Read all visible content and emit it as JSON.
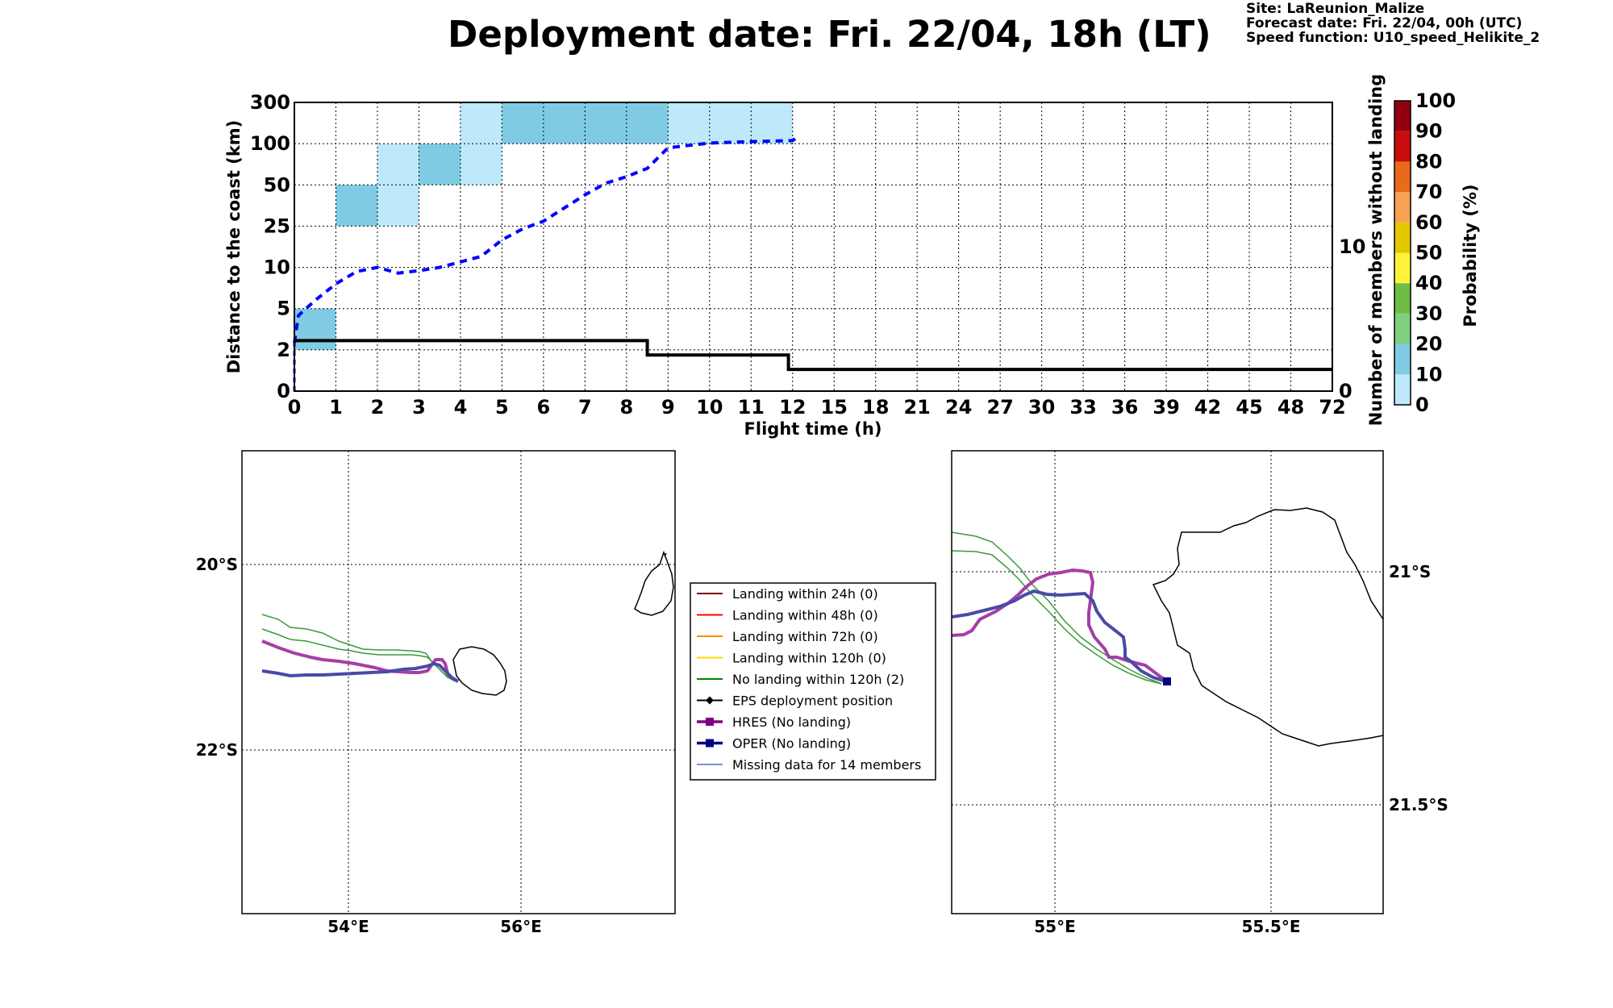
{
  "title": "Deployment date: Fri. 22/04, 18h (LT)",
  "info": {
    "site": "Site: LaReunion_Malize",
    "forecast": "Forecast date: Fri. 22/04, 00h (UTC)",
    "speed": "Speed function: U10_speed_Helikite_2"
  },
  "chart_data": [
    {
      "type": "heatmap",
      "xlabel": "Flight time (h)",
      "ylabel": "Distance to the coast (km)",
      "y2label": "Number of members without landing",
      "x_ticks": [
        "0",
        "1",
        "2",
        "3",
        "4",
        "5",
        "6",
        "7",
        "8",
        "9",
        "10",
        "11",
        "12",
        "15",
        "18",
        "21",
        "24",
        "27",
        "30",
        "33",
        "36",
        "39",
        "42",
        "45",
        "48",
        "72"
      ],
      "x_tick_hours": [
        0,
        1,
        2,
        3,
        4,
        5,
        6,
        7,
        8,
        9,
        10,
        11,
        12,
        15,
        18,
        21,
        24,
        27,
        30,
        33,
        36,
        39,
        42,
        45,
        48,
        72
      ],
      "y_ticks": [
        "0",
        "2",
        "5",
        "10",
        "25",
        "50",
        "100",
        "300"
      ],
      "y2_ticks": [
        "0",
        "10"
      ],
      "y2lim": [
        0,
        20
      ],
      "cells": [
        {
          "x0": 0,
          "x1": 1,
          "y0": "2",
          "y1": "5",
          "prob": 15
        },
        {
          "x0": 1,
          "x1": 2,
          "y0": "25",
          "y1": "50",
          "prob": 15
        },
        {
          "x0": 2,
          "x1": 3,
          "y0": "25",
          "y1": "50",
          "prob": 5
        },
        {
          "x0": 2,
          "x1": 3,
          "y0": "50",
          "y1": "100",
          "prob": 5
        },
        {
          "x0": 3,
          "x1": 4,
          "y0": "50",
          "y1": "100",
          "prob": 15
        },
        {
          "x0": 4,
          "x1": 5,
          "y0": "50",
          "y1": "100",
          "prob": 5
        },
        {
          "x0": 4,
          "x1": 5,
          "y0": "100",
          "y1": "300",
          "prob": 5
        },
        {
          "x0": 5,
          "x1": 9,
          "y0": "100",
          "y1": "300",
          "prob": 15
        },
        {
          "x0": 9,
          "x1": 12,
          "y0": "100",
          "y1": "300",
          "prob": 5
        }
      ],
      "mean_distance_km": [
        [
          0,
          2.5
        ],
        [
          0.1,
          4.5
        ],
        [
          0.5,
          6
        ],
        [
          1,
          8
        ],
        [
          1.5,
          9.5
        ],
        [
          2,
          10
        ],
        [
          2.5,
          9.3
        ],
        [
          3,
          9.6
        ],
        [
          3.5,
          10
        ],
        [
          4,
          12
        ],
        [
          4.5,
          14
        ],
        [
          5,
          20
        ],
        [
          5.5,
          24
        ],
        [
          6,
          28
        ],
        [
          6.5,
          36
        ],
        [
          7,
          44
        ],
        [
          7.5,
          52
        ],
        [
          8,
          60
        ],
        [
          8.5,
          70
        ],
        [
          9,
          95
        ],
        [
          10,
          103
        ],
        [
          11,
          110
        ],
        [
          12,
          115
        ],
        [
          12.5,
          140
        ]
      ],
      "members_without_landing": [
        [
          0,
          3.5
        ],
        [
          8.5,
          3.5
        ],
        [
          8.5,
          2.5
        ],
        [
          11.9,
          2.5
        ],
        [
          11.9,
          1.5
        ],
        [
          72,
          1.5
        ]
      ],
      "colorbar": {
        "label": "Probability (%)",
        "ticks": [
          "0",
          "10",
          "20",
          "30",
          "40",
          "50",
          "60",
          "70",
          "80",
          "90",
          "100"
        ],
        "colors": [
          "#bde9fb",
          "#7fcbe4",
          "#7fd180",
          "#6fbd47",
          "#fff23a",
          "#e3c700",
          "#f8a152",
          "#e96b19",
          "#c90c0b",
          "#910010"
        ]
      }
    },
    {
      "type": "map",
      "lon_ticks": [
        "54°E",
        "56°E"
      ],
      "lat_ticks": [
        "20°S",
        "22°S"
      ]
    },
    {
      "type": "map",
      "lon_ticks": [
        "55°E",
        "55.5°E"
      ],
      "lat_ticks": [
        "21°S",
        "21.5°S"
      ]
    }
  ],
  "legend": [
    {
      "label": "Landing within 24h (0)",
      "color": "#800000",
      "kind": "line"
    },
    {
      "label": "Landing within 48h (0)",
      "color": "#ff0000",
      "kind": "line"
    },
    {
      "label": "Landing within 72h (0)",
      "color": "#ff8c00",
      "kind": "line"
    },
    {
      "label": "Landing within 120h (0)",
      "color": "#ffd700",
      "kind": "line"
    },
    {
      "label": "No landing within 120h (2)",
      "color": "#008000",
      "kind": "line"
    },
    {
      "label": "EPS deployment position",
      "color": "#000000",
      "kind": "diamond"
    },
    {
      "label": "HRES (No landing)",
      "color": "#800080",
      "kind": "square"
    },
    {
      "label": "OPER (No landing)",
      "color": "#000080",
      "kind": "square"
    },
    {
      "label": "Missing data for 14 members",
      "color": "#4169e1",
      "kind": "thin"
    }
  ]
}
